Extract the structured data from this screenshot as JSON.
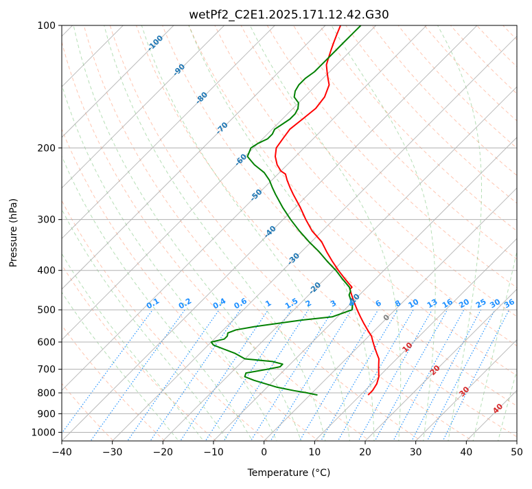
{
  "chart_data": {
    "type": "line",
    "title": "wetPf2_C2E1.2025.171.12.42.G30",
    "xlabel": "Temperature (°C)",
    "ylabel": "Pressure (hPa)",
    "xlim": [
      -40,
      50
    ],
    "ylim": [
      1050,
      100
    ],
    "y_scale": "log",
    "grid": true,
    "x_ticks": [
      -40,
      -30,
      -20,
      -10,
      0,
      10,
      20,
      30,
      40,
      50
    ],
    "y_ticks": [
      100,
      200,
      300,
      400,
      500,
      600,
      700,
      800,
      900,
      1000
    ],
    "dry_adiabat_labels": [
      "-100",
      "-90",
      "-80",
      "-70",
      "-60",
      "-50",
      "-40",
      "-30",
      "-20",
      "-10"
    ],
    "dry_adiabat_values": [
      -100,
      -90,
      -80,
      -70,
      -60,
      -50,
      -40,
      -30,
      -20,
      -10
    ],
    "mixing_ratio_labels": [
      "0.1",
      "0.2",
      "0.4",
      "0.6",
      "1",
      "1.5",
      "2",
      "3",
      "4",
      "6",
      "8",
      "10",
      "13",
      "16",
      "20",
      "25",
      "30",
      "36"
    ],
    "mixing_ratio_values": [
      0.1,
      0.2,
      0.4,
      0.6,
      1,
      1.5,
      2,
      3,
      4,
      6,
      8,
      10,
      13,
      16,
      20,
      25,
      30,
      36
    ],
    "isotherm_labels": [
      "0",
      "10",
      "20",
      "30",
      "40"
    ],
    "isotherm_values": [
      0,
      10,
      20,
      30,
      40
    ],
    "colors": {
      "temperature": "#ff0000",
      "dewpoint": "#008000",
      "dry_adiabat": "#ff7f50",
      "moist_adiabat": "#2ca02c",
      "mixing_ratio": "#1e90ff",
      "isotherm_label": "#d62728",
      "isotherm_label_zero": "#808080",
      "dry_adiabat_label": "#1f77b4",
      "skew_isotherm_line": "#a9a9a9",
      "dry_adiabat_grey": "#c8b09a"
    },
    "series": [
      {
        "key": "temperature",
        "pressure": [
          810,
          790,
          760,
          730,
          700,
          680,
          660,
          640,
          620,
          600,
          580,
          560,
          540,
          520,
          500,
          480,
          460,
          445,
          440,
          420,
          400,
          380,
          360,
          340,
          320,
          300,
          280,
          260,
          250,
          240,
          232,
          228,
          220,
          210,
          200,
          190,
          180,
          170,
          160,
          150,
          140,
          135,
          130,
          125,
          120,
          115,
          110,
          105,
          100
        ],
        "temperature": [
          11.5,
          11.5,
          11.0,
          10.0,
          8.5,
          7.5,
          6.5,
          5.0,
          3.5,
          2.0,
          0.5,
          -1.5,
          -3.5,
          -5.5,
          -7.5,
          -9.5,
          -11.5,
          -13.0,
          -13.0,
          -16.0,
          -19.0,
          -22.0,
          -25.0,
          -28.0,
          -32.0,
          -35.5,
          -39.0,
          -43.0,
          -45.0,
          -47.0,
          -48.5,
          -50.0,
          -52.0,
          -54.0,
          -55.5,
          -56.0,
          -56.5,
          -56.0,
          -55.5,
          -56.0,
          -57.5,
          -59.0,
          -60.5,
          -62.0,
          -63.0,
          -64.0,
          -65.0,
          -66.0,
          -67.0
        ]
      },
      {
        "key": "dewpoint",
        "pressure": [
          810,
          800,
          790,
          775,
          760,
          745,
          730,
          715,
          700,
          690,
          680,
          670,
          660,
          640,
          625,
          610,
          600,
          590,
          580,
          570,
          560,
          550,
          540,
          530,
          520,
          500,
          485,
          470,
          460,
          450,
          440,
          420,
          400,
          380,
          360,
          340,
          320,
          300,
          280,
          260,
          250,
          240,
          230,
          220,
          210,
          200,
          195,
          190,
          185,
          180,
          175,
          170,
          165,
          160,
          155,
          150,
          145,
          140,
          135,
          130,
          125,
          120,
          115,
          110,
          105,
          100
        ],
        "dewpoint": [
          1.5,
          -1.0,
          -4.0,
          -8.0,
          -11.0,
          -14.0,
          -16.5,
          -17.0,
          -13.5,
          -11.5,
          -11.5,
          -14.0,
          -20.0,
          -23.0,
          -26.0,
          -29.0,
          -30.0,
          -28.0,
          -28.0,
          -28.5,
          -27.5,
          -24.5,
          -20.5,
          -16.5,
          -11.0,
          -8.5,
          -9.5,
          -11.0,
          -12.0,
          -12.5,
          -13.5,
          -16.5,
          -19.5,
          -23.0,
          -26.5,
          -30.5,
          -34.5,
          -38.5,
          -42.5,
          -46.5,
          -48.5,
          -50.5,
          -53.0,
          -56.5,
          -59.5,
          -60.5,
          -60.0,
          -59.0,
          -59.0,
          -59.5,
          -59.0,
          -58.5,
          -58.5,
          -59.0,
          -60.0,
          -62.0,
          -63.0,
          -63.5,
          -63.5,
          -63.0,
          -63.0,
          -63.0,
          -63.0,
          -63.0,
          -63.0,
          -63.0
        ]
      }
    ]
  }
}
